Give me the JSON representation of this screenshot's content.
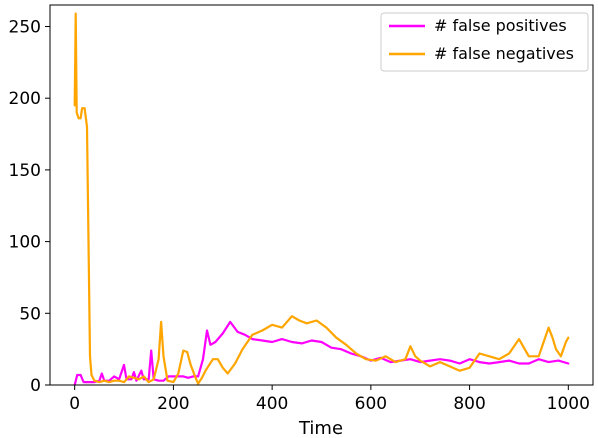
{
  "chart_data": {
    "type": "line",
    "title": "",
    "xlabel": "Time",
    "ylabel": "",
    "xlim": [
      -50,
      1050
    ],
    "ylim": [
      0,
      265
    ],
    "xticks": [
      0,
      200,
      400,
      600,
      800,
      1000
    ],
    "yticks": [
      0,
      50,
      100,
      150,
      200,
      250
    ],
    "grid": false,
    "legend_position": "top-right",
    "series": [
      {
        "name": "# false positives",
        "color": "#ff00ff",
        "points": [
          [
            0,
            0
          ],
          [
            5,
            7
          ],
          [
            12,
            7
          ],
          [
            18,
            2
          ],
          [
            25,
            2
          ],
          [
            40,
            2
          ],
          [
            50,
            3
          ],
          [
            55,
            8
          ],
          [
            60,
            3
          ],
          [
            70,
            3
          ],
          [
            80,
            6
          ],
          [
            90,
            4
          ],
          [
            100,
            14
          ],
          [
            105,
            4
          ],
          [
            115,
            4
          ],
          [
            120,
            9
          ],
          [
            125,
            3
          ],
          [
            135,
            10
          ],
          [
            140,
            4
          ],
          [
            150,
            4
          ],
          [
            155,
            24
          ],
          [
            160,
            4
          ],
          [
            170,
            3
          ],
          [
            180,
            3
          ],
          [
            190,
            6
          ],
          [
            200,
            6
          ],
          [
            210,
            6
          ],
          [
            220,
            6
          ],
          [
            230,
            5
          ],
          [
            240,
            6
          ],
          [
            250,
            6
          ],
          [
            260,
            18
          ],
          [
            268,
            38
          ],
          [
            275,
            28
          ],
          [
            285,
            30
          ],
          [
            300,
            36
          ],
          [
            315,
            44
          ],
          [
            330,
            37
          ],
          [
            345,
            35
          ],
          [
            360,
            32
          ],
          [
            380,
            31
          ],
          [
            400,
            30
          ],
          [
            420,
            32
          ],
          [
            440,
            30
          ],
          [
            460,
            29
          ],
          [
            480,
            31
          ],
          [
            500,
            30
          ],
          [
            520,
            26
          ],
          [
            540,
            25
          ],
          [
            560,
            22
          ],
          [
            580,
            20
          ],
          [
            600,
            17
          ],
          [
            620,
            19
          ],
          [
            640,
            16
          ],
          [
            660,
            17
          ],
          [
            680,
            18
          ],
          [
            700,
            16
          ],
          [
            720,
            17
          ],
          [
            740,
            18
          ],
          [
            760,
            17
          ],
          [
            780,
            15
          ],
          [
            800,
            18
          ],
          [
            820,
            16
          ],
          [
            840,
            15
          ],
          [
            860,
            16
          ],
          [
            880,
            17
          ],
          [
            900,
            15
          ],
          [
            920,
            15
          ],
          [
            940,
            18
          ],
          [
            960,
            16
          ],
          [
            980,
            17
          ],
          [
            1000,
            15
          ]
        ]
      },
      {
        "name": "# false negatives",
        "color": "#ffa500",
        "points": [
          [
            0,
            195
          ],
          [
            2,
            259
          ],
          [
            4,
            190
          ],
          [
            8,
            186
          ],
          [
            12,
            186
          ],
          [
            15,
            193
          ],
          [
            20,
            193
          ],
          [
            25,
            180
          ],
          [
            28,
            100
          ],
          [
            31,
            20
          ],
          [
            34,
            7
          ],
          [
            40,
            3
          ],
          [
            50,
            2
          ],
          [
            60,
            3
          ],
          [
            70,
            2
          ],
          [
            80,
            3
          ],
          [
            90,
            3
          ],
          [
            100,
            2
          ],
          [
            110,
            6
          ],
          [
            120,
            5
          ],
          [
            130,
            4
          ],
          [
            140,
            6
          ],
          [
            150,
            2
          ],
          [
            160,
            4
          ],
          [
            170,
            18
          ],
          [
            175,
            44
          ],
          [
            180,
            20
          ],
          [
            188,
            3
          ],
          [
            200,
            2
          ],
          [
            210,
            8
          ],
          [
            220,
            24
          ],
          [
            228,
            23
          ],
          [
            235,
            14
          ],
          [
            245,
            5
          ],
          [
            250,
            1
          ],
          [
            258,
            5
          ],
          [
            265,
            10
          ],
          [
            280,
            18
          ],
          [
            290,
            18
          ],
          [
            300,
            12
          ],
          [
            310,
            8
          ],
          [
            325,
            15
          ],
          [
            340,
            25
          ],
          [
            360,
            35
          ],
          [
            380,
            38
          ],
          [
            400,
            42
          ],
          [
            420,
            40
          ],
          [
            440,
            48
          ],
          [
            455,
            45
          ],
          [
            470,
            43
          ],
          [
            490,
            45
          ],
          [
            510,
            40
          ],
          [
            530,
            33
          ],
          [
            550,
            28
          ],
          [
            570,
            22
          ],
          [
            590,
            18
          ],
          [
            610,
            17
          ],
          [
            630,
            20
          ],
          [
            650,
            16
          ],
          [
            670,
            18
          ],
          [
            680,
            27
          ],
          [
            690,
            20
          ],
          [
            700,
            17
          ],
          [
            720,
            13
          ],
          [
            740,
            16
          ],
          [
            760,
            13
          ],
          [
            780,
            10
          ],
          [
            800,
            12
          ],
          [
            820,
            22
          ],
          [
            840,
            20
          ],
          [
            860,
            18
          ],
          [
            880,
            22
          ],
          [
            900,
            32
          ],
          [
            910,
            26
          ],
          [
            920,
            20
          ],
          [
            940,
            20
          ],
          [
            960,
            40
          ],
          [
            968,
            33
          ],
          [
            975,
            25
          ],
          [
            985,
            20
          ],
          [
            995,
            30
          ],
          [
            1000,
            33
          ]
        ]
      }
    ]
  }
}
